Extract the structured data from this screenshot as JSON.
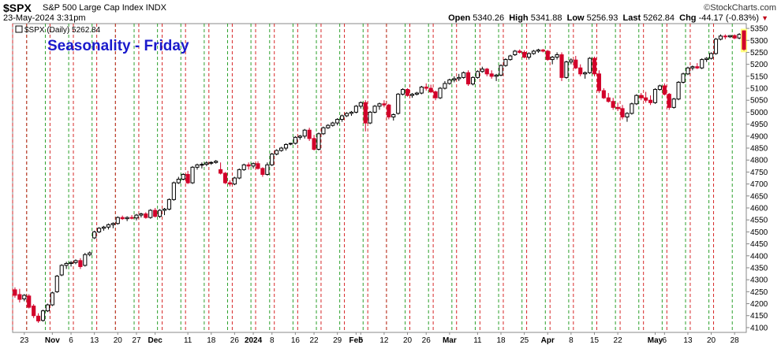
{
  "header": {
    "symbol": "$SPX",
    "description": "S&P 500 Large Cap Index INDX",
    "datetime": "23-May-2024 3:31pm",
    "copyright": "©StockCharts.com",
    "open_label": "Open",
    "open": "5340.26",
    "high_label": "High",
    "high": "5341.88",
    "low_label": "Low",
    "low": "5256.93",
    "last_label": "Last",
    "last": "5262.84",
    "chg_label": "Chg",
    "chg": "-44.17 (-0.83%)"
  },
  "legend": {
    "series_label": "$SPX (Daily) 5262.84"
  },
  "colors": {
    "up": "#000000",
    "down": "#d2002a",
    "friday_line": "#2ca02c",
    "monday_line": "#d62728",
    "title": "#1a1acc",
    "highlight": "#ffff80"
  },
  "chart_data": {
    "type": "candlestick",
    "title": "Seasonality - Friday",
    "ylim": [
      4080,
      5370
    ],
    "y_ticks": [
      4100,
      4150,
      4200,
      4250,
      4300,
      4350,
      4400,
      4450,
      4500,
      4550,
      4600,
      4650,
      4700,
      4750,
      4800,
      4850,
      4900,
      4950,
      5000,
      5050,
      5100,
      5150,
      5200,
      5250,
      5300,
      5350
    ],
    "x_tick_labels": [
      {
        "label": "23",
        "day": 2
      },
      {
        "label": "Nov",
        "day": 8,
        "bold": true
      },
      {
        "label": "6",
        "day": 12
      },
      {
        "label": "13",
        "day": 17
      },
      {
        "label": "20",
        "day": 22
      },
      {
        "label": "27",
        "day": 26
      },
      {
        "label": "Dec",
        "day": 30,
        "bold": true
      },
      {
        "label": "11",
        "day": 37
      },
      {
        "label": "18",
        "day": 42
      },
      {
        "label": "26",
        "day": 47
      },
      {
        "label": "2024",
        "day": 51,
        "bold": true
      },
      {
        "label": "8",
        "day": 55
      },
      {
        "label": "16",
        "day": 60
      },
      {
        "label": "22",
        "day": 64
      },
      {
        "label": "29",
        "day": 69
      },
      {
        "label": "Feb",
        "day": 73,
        "bold": true
      },
      {
        "label": "5",
        "day": 74
      },
      {
        "label": "12",
        "day": 79
      },
      {
        "label": "20",
        "day": 84
      },
      {
        "label": "26",
        "day": 88
      },
      {
        "label": "Mar",
        "day": 93,
        "bold": true
      },
      {
        "label": "11",
        "day": 99
      },
      {
        "label": "18",
        "day": 104
      },
      {
        "label": "25",
        "day": 109
      },
      {
        "label": "Apr",
        "day": 114,
        "bold": true
      },
      {
        "label": "8",
        "day": 119
      },
      {
        "label": "15",
        "day": 124
      },
      {
        "label": "22",
        "day": 129
      },
      {
        "label": "May",
        "day": 137,
        "bold": true
      },
      {
        "label": "6",
        "day": 139
      },
      {
        "label": "13",
        "day": 144
      },
      {
        "label": "20",
        "day": 149
      },
      {
        "label": "28",
        "day": 154
      }
    ],
    "friday_days": [
      6,
      11,
      16,
      21,
      25,
      29,
      36,
      41,
      46,
      55,
      59,
      64,
      68,
      73,
      78,
      83,
      87,
      92,
      97,
      102,
      107,
      111,
      116,
      121,
      126,
      131,
      136,
      141,
      146,
      151
    ],
    "monday_days": [
      2,
      7,
      12,
      17,
      22,
      26,
      30,
      37,
      42,
      47,
      51,
      60,
      64,
      69,
      74,
      79,
      84,
      88,
      93,
      99,
      104,
      109,
      114,
      119,
      124,
      129,
      134,
      139,
      144,
      149
    ],
    "friday_days_full": [
      2,
      6,
      11,
      16,
      21,
      25,
      30,
      35,
      40,
      45,
      50,
      54,
      59,
      64,
      69,
      74,
      79,
      83,
      88,
      93,
      98,
      103,
      108,
      113,
      118,
      123,
      128,
      133,
      138,
      143,
      148,
      153
    ],
    "monday_days_full": [
      0,
      3,
      8,
      13,
      18,
      22,
      27,
      32,
      37,
      42,
      47,
      52,
      56,
      61,
      66,
      71,
      76,
      80,
      85,
      90,
      95,
      100,
      105,
      110,
      115,
      120,
      125,
      130,
      135,
      140,
      145,
      150
    ],
    "days": 157,
    "highlight_last": true,
    "ohlc": [
      [
        4258,
        4268,
        4225,
        4235
      ],
      [
        4238,
        4262,
        4205,
        4218
      ],
      [
        4220,
        4240,
        4210,
        4235
      ],
      [
        4232,
        4240,
        4180,
        4185
      ],
      [
        4190,
        4198,
        4140,
        4150
      ],
      [
        4148,
        4160,
        4120,
        4128
      ],
      [
        4130,
        4175,
        4125,
        4170
      ],
      [
        4170,
        4200,
        4165,
        4195
      ],
      [
        4195,
        4250,
        4190,
        4245
      ],
      [
        4250,
        4320,
        4245,
        4315
      ],
      [
        4320,
        4365,
        4315,
        4360
      ],
      [
        4360,
        4375,
        4345,
        4368
      ],
      [
        4368,
        4378,
        4355,
        4372
      ],
      [
        4372,
        4385,
        4365,
        4380
      ],
      [
        4380,
        4390,
        4345,
        4355
      ],
      [
        4360,
        4412,
        4355,
        4405
      ],
      [
        4405,
        4418,
        4398,
        4412
      ],
      [
        4475,
        4505,
        4470,
        4500
      ],
      [
        4500,
        4520,
        4495,
        4515
      ],
      [
        4515,
        4525,
        4505,
        4520
      ],
      [
        4520,
        4535,
        4510,
        4530
      ],
      [
        4530,
        4540,
        4515,
        4535
      ],
      [
        4535,
        4565,
        4530,
        4560
      ],
      [
        4560,
        4568,
        4550,
        4555
      ],
      [
        4555,
        4565,
        4545,
        4560
      ],
      [
        4560,
        4570,
        4552,
        4558
      ],
      [
        4558,
        4575,
        4548,
        4570
      ],
      [
        4570,
        4580,
        4560,
        4575
      ],
      [
        4575,
        4582,
        4555,
        4560
      ],
      [
        4560,
        4595,
        4555,
        4590
      ],
      [
        4590,
        4600,
        4560,
        4565
      ],
      [
        4565,
        4595,
        4558,
        4590
      ],
      [
        4590,
        4600,
        4570,
        4595
      ],
      [
        4595,
        4640,
        4590,
        4635
      ],
      [
        4635,
        4710,
        4630,
        4705
      ],
      [
        4705,
        4730,
        4700,
        4720
      ],
      [
        4720,
        4745,
        4715,
        4740
      ],
      [
        4740,
        4755,
        4700,
        4705
      ],
      [
        4705,
        4775,
        4700,
        4770
      ],
      [
        4770,
        4785,
        4760,
        4780
      ],
      [
        4780,
        4790,
        4765,
        4782
      ],
      [
        4782,
        4795,
        4775,
        4788
      ],
      [
        4788,
        4795,
        4780,
        4790
      ],
      [
        4790,
        4800,
        4785,
        4795
      ],
      [
        4760,
        4790,
        4740,
        4745
      ],
      [
        4745,
        4750,
        4700,
        4705
      ],
      [
        4705,
        4715,
        4690,
        4700
      ],
      [
        4700,
        4730,
        4695,
        4725
      ],
      [
        4725,
        4765,
        4720,
        4760
      ],
      [
        4760,
        4785,
        4755,
        4780
      ],
      [
        4780,
        4790,
        4760,
        4775
      ],
      [
        4775,
        4790,
        4765,
        4785
      ],
      [
        4785,
        4795,
        4760,
        4765
      ],
      [
        4765,
        4770,
        4730,
        4740
      ],
      [
        4740,
        4790,
        4735,
        4780
      ],
      [
        4780,
        4830,
        4775,
        4825
      ],
      [
        4825,
        4845,
        4820,
        4840
      ],
      [
        4840,
        4855,
        4835,
        4850
      ],
      [
        4850,
        4870,
        4840,
        4865
      ],
      [
        4868,
        4872,
        4862,
        4870
      ],
      [
        4870,
        4900,
        4865,
        4895
      ],
      [
        4895,
        4905,
        4885,
        4900
      ],
      [
        4900,
        4930,
        4890,
        4925
      ],
      [
        4925,
        4935,
        4880,
        4890
      ],
      [
        4890,
        4905,
        4840,
        4845
      ],
      [
        4845,
        4915,
        4840,
        4910
      ],
      [
        4910,
        4940,
        4905,
        4935
      ],
      [
        4935,
        4950,
        4930,
        4945
      ],
      [
        4945,
        4960,
        4940,
        4955
      ],
      [
        4955,
        4975,
        4945,
        4970
      ],
      [
        4970,
        4990,
        4960,
        4985
      ],
      [
        4985,
        5000,
        4980,
        4995
      ],
      [
        4995,
        5005,
        4985,
        5000
      ],
      [
        5000,
        5030,
        4995,
        5025
      ],
      [
        5025,
        5045,
        5015,
        5040
      ],
      [
        5040,
        5050,
        4920,
        4955
      ],
      [
        4955,
        5005,
        4950,
        5000
      ],
      [
        5000,
        5030,
        4995,
        5025
      ],
      [
        5025,
        5040,
        5010,
        5035
      ],
      [
        5035,
        5050,
        5020,
        5030
      ],
      [
        5030,
        5035,
        4970,
        4980
      ],
      [
        4980,
        4995,
        4965,
        4990
      ],
      [
        4995,
        5080,
        4990,
        5075
      ],
      [
        5075,
        5100,
        5070,
        5095
      ],
      [
        5095,
        5100,
        5065,
        5070
      ],
      [
        5070,
        5080,
        5060,
        5075
      ],
      [
        5075,
        5085,
        5070,
        5080
      ],
      [
        5080,
        5110,
        5075,
        5105
      ],
      [
        5105,
        5120,
        5090,
        5100
      ],
      [
        5100,
        5115,
        5080,
        5085
      ],
      [
        5085,
        5090,
        5050,
        5060
      ],
      [
        5060,
        5105,
        5055,
        5100
      ],
      [
        5100,
        5130,
        5095,
        5120
      ],
      [
        5120,
        5140,
        5115,
        5135
      ],
      [
        5135,
        5150,
        5125,
        5140
      ],
      [
        5140,
        5160,
        5130,
        5145
      ],
      [
        5145,
        5170,
        5140,
        5165
      ],
      [
        5165,
        5175,
        5110,
        5118
      ],
      [
        5118,
        5150,
        5112,
        5145
      ],
      [
        5145,
        5175,
        5140,
        5170
      ],
      [
        5170,
        5190,
        5165,
        5180
      ],
      [
        5180,
        5185,
        5150,
        5160
      ],
      [
        5160,
        5175,
        5140,
        5150
      ],
      [
        5150,
        5160,
        5130,
        5155
      ],
      [
        5155,
        5200,
        5150,
        5195
      ],
      [
        5195,
        5225,
        5190,
        5220
      ],
      [
        5220,
        5240,
        5215,
        5235
      ],
      [
        5240,
        5260,
        5235,
        5255
      ],
      [
        5255,
        5262,
        5245,
        5250
      ],
      [
        5250,
        5258,
        5225,
        5230
      ],
      [
        5230,
        5250,
        5220,
        5245
      ],
      [
        5245,
        5260,
        5240,
        5255
      ],
      [
        5255,
        5265,
        5248,
        5260
      ],
      [
        5260,
        5264,
        5250,
        5255
      ],
      [
        5255,
        5260,
        5215,
        5220
      ],
      [
        5220,
        5235,
        5200,
        5230
      ],
      [
        5230,
        5250,
        5220,
        5240
      ],
      [
        5240,
        5250,
        5130,
        5145
      ],
      [
        5145,
        5215,
        5140,
        5210
      ],
      [
        5210,
        5225,
        5200,
        5218
      ],
      [
        5218,
        5235,
        5180,
        5185
      ],
      [
        5185,
        5200,
        5150,
        5160
      ],
      [
        5160,
        5170,
        5140,
        5165
      ],
      [
        5165,
        5230,
        5160,
        5225
      ],
      [
        5225,
        5232,
        5150,
        5160
      ],
      [
        5160,
        5175,
        5080,
        5090
      ],
      [
        5090,
        5100,
        5055,
        5060
      ],
      [
        5060,
        5080,
        5040,
        5045
      ],
      [
        5045,
        5060,
        5010,
        5020
      ],
      [
        5020,
        5040,
        5005,
        5015
      ],
      [
        5015,
        5030,
        4970,
        4980
      ],
      [
        4980,
        5000,
        4960,
        4995
      ],
      [
        4995,
        5040,
        4990,
        5035
      ],
      [
        5035,
        5075,
        5030,
        5070
      ],
      [
        5070,
        5080,
        5050,
        5060
      ],
      [
        5060,
        5085,
        5040,
        5050
      ],
      [
        5050,
        5070,
        5030,
        5040
      ],
      [
        5040,
        5100,
        5035,
        5095
      ],
      [
        5095,
        5115,
        5090,
        5110
      ],
      [
        5110,
        5120,
        5070,
        5075
      ],
      [
        5075,
        5080,
        5010,
        5020
      ],
      [
        5020,
        5060,
        5015,
        5055
      ],
      [
        5055,
        5130,
        5050,
        5125
      ],
      [
        5125,
        5165,
        5120,
        5160
      ],
      [
        5160,
        5190,
        5155,
        5185
      ],
      [
        5185,
        5195,
        5175,
        5190
      ],
      [
        5190,
        5205,
        5180,
        5185
      ],
      [
        5185,
        5225,
        5180,
        5220
      ],
      [
        5220,
        5230,
        5210,
        5225
      ],
      [
        5225,
        5250,
        5220,
        5245
      ],
      [
        5245,
        5310,
        5240,
        5305
      ],
      [
        5305,
        5325,
        5300,
        5318
      ],
      [
        5318,
        5325,
        5305,
        5315
      ],
      [
        5315,
        5322,
        5310,
        5320
      ],
      [
        5320,
        5325,
        5305,
        5310
      ],
      [
        5310,
        5330,
        5305,
        5325
      ],
      [
        5340,
        5342,
        5257,
        5263
      ]
    ]
  }
}
